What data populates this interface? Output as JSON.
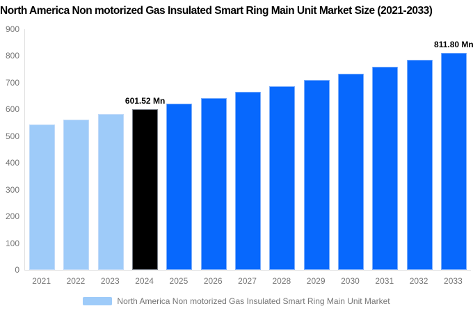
{
  "title": "North America Non motorized Gas Insulated Smart Ring Main Unit Market Size (2021-2033)",
  "legend": {
    "label": "North America Non motorized Gas Insulated Smart Ring Main Unit Market",
    "swatch_color": "#9ecbf9"
  },
  "chart_data": {
    "type": "bar",
    "title": "North America Non motorized Gas Insulated Smart Ring Main Unit Market Size (2021-2033)",
    "categories": [
      "2021",
      "2022",
      "2023",
      "2024",
      "2025",
      "2026",
      "2027",
      "2028",
      "2029",
      "2030",
      "2031",
      "2032",
      "2033"
    ],
    "values": [
      544.3,
      562.8,
      581.8,
      601.52,
      621.9,
      643.0,
      664.7,
      687.3,
      710.5,
      734.6,
      759.5,
      785.2,
      811.8
    ],
    "bar_color_keys": [
      "light",
      "light",
      "light",
      "black",
      "blue",
      "blue",
      "blue",
      "blue",
      "blue",
      "blue",
      "blue",
      "blue",
      "blue"
    ],
    "data_labels": [
      null,
      null,
      null,
      "601.52 Mn",
      null,
      null,
      null,
      null,
      null,
      null,
      null,
      null,
      "811.80 Mn"
    ],
    "xlabel": "",
    "ylabel": "",
    "ylim": [
      0,
      900
    ],
    "y_ticks": [
      0,
      100,
      200,
      300,
      400,
      500,
      600,
      700,
      800,
      900
    ],
    "grid": false,
    "legend_position": "bottom",
    "colors": {
      "light": "#9ecbf9",
      "black": "#000000",
      "blue": "#0768fd",
      "axis_line": "#e0e0e0",
      "tick_text": "#757575",
      "value_label_text": "#000000"
    }
  }
}
